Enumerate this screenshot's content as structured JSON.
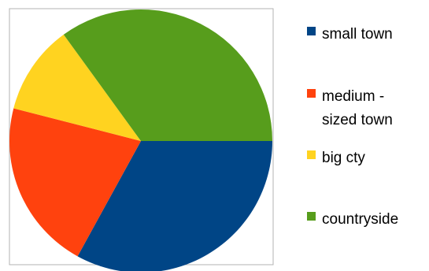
{
  "chart_data": {
    "type": "pie",
    "title": "",
    "start_angle_deg": 0,
    "direction": "clockwise",
    "slices": [
      {
        "label": "small town",
        "label_lines": [
          "small town"
        ],
        "value": 33,
        "color": "#004586"
      },
      {
        "label": "medium - sized town",
        "label_lines": [
          "medium -",
          "sized town"
        ],
        "value": 21,
        "color": "#FF420E"
      },
      {
        "label": "big cty",
        "label_lines": [
          "big cty"
        ],
        "value": 11,
        "color": "#FFD320"
      },
      {
        "label": "countryside",
        "label_lines": [
          "countryside"
        ],
        "value": 35,
        "color": "#579D1C"
      }
    ],
    "legend_position": "right",
    "plot_border_color": "#B3B3B3"
  }
}
